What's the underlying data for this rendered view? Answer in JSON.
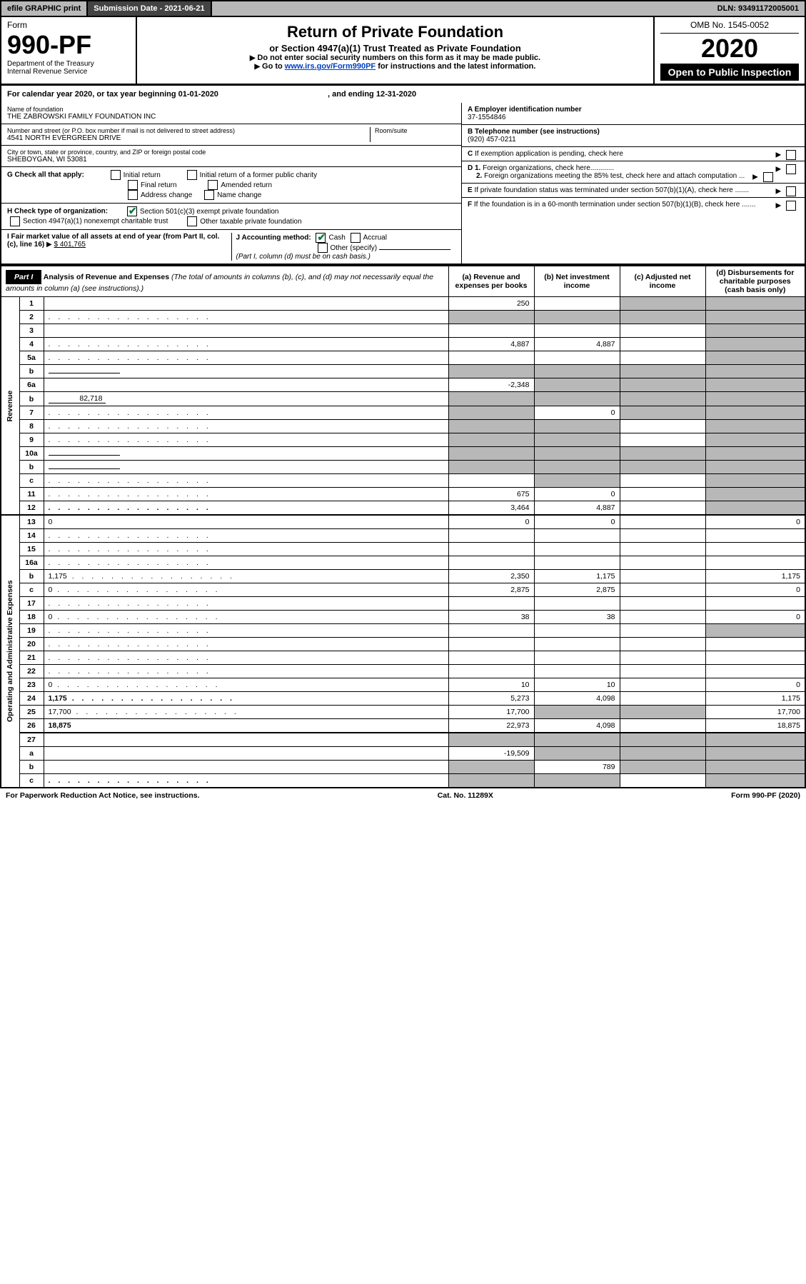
{
  "topbar": {
    "efile": "efile GRAPHIC print",
    "submission_label": "Submission Date - 2021-06-21",
    "dln": "DLN: 93491172005001"
  },
  "header": {
    "form_word": "Form",
    "form_number": "990-PF",
    "dept": "Department of the Treasury",
    "irs": "Internal Revenue Service",
    "title": "Return of Private Foundation",
    "subtitle": "or Section 4947(a)(1) Trust Treated as Private Foundation",
    "instr1": "Do not enter social security numbers on this form as it may be made public.",
    "instr2_pre": "Go to ",
    "instr2_link": "www.irs.gov/Form990PF",
    "instr2_post": " for instructions and the latest information.",
    "omb": "OMB No. 1545-0052",
    "year": "2020",
    "open": "Open to Public Inspection"
  },
  "calyear": {
    "prefix": "For calendar year 2020, or tax year beginning ",
    "begin": "01-01-2020",
    "mid": " , and ending ",
    "end": "12-31-2020"
  },
  "name": {
    "label": "Name of foundation",
    "value": "THE ZABROWSKI FAMILY FOUNDATION INC"
  },
  "address": {
    "label": "Number and street (or P.O. box number if mail is not delivered to street address)",
    "value": "4541 NORTH EVERGREEN DRIVE",
    "room_label": "Room/suite"
  },
  "city": {
    "label": "City or town, state or province, country, and ZIP or foreign postal code",
    "value": "SHEBOYGAN, WI  53081"
  },
  "ein": {
    "hdr": "A Employer identification number",
    "value": "37-1554846"
  },
  "phone": {
    "hdr": "B Telephone number (see instructions)",
    "value": "(920) 457-0211"
  },
  "right_side": {
    "C": "If exemption application is pending, check here",
    "D1": "Foreign organizations, check here............",
    "D2": "Foreign organizations meeting the 85% test, check here and attach computation ...",
    "E": "If private foundation status was terminated under section 507(b)(1)(A), check here .......",
    "F": "If the foundation is in a 60-month termination under section 507(b)(1)(B), check here ......."
  },
  "G": {
    "hdr": "G Check all that apply:",
    "opts": [
      "Initial return",
      "Initial return of a former public charity",
      "Final return",
      "Amended return",
      "Address change",
      "Name change"
    ]
  },
  "H": {
    "hdr": "H Check type of organization:",
    "opt1": "Section 501(c)(3) exempt private foundation",
    "opt2": "Section 4947(a)(1) nonexempt charitable trust",
    "opt3": "Other taxable private foundation"
  },
  "I": {
    "hdr": "I Fair market value of all assets at end of year (from Part II, col. (c), line 16)",
    "val": "$  401,765"
  },
  "J": {
    "hdr": "J Accounting method:",
    "cash": "Cash",
    "accrual": "Accrual",
    "other": "Other (specify)",
    "note": "(Part I, column (d) must be on cash basis.)"
  },
  "part1": {
    "label": "Part I",
    "title": "Analysis of Revenue and Expenses",
    "title_note": "(The total of amounts in columns (b), (c), and (d) may not necessarily equal the amounts in column (a) (see instructions).)",
    "cols": {
      "a": "(a)  Revenue and expenses per books",
      "b": "(b)  Net investment income",
      "c": "(c)  Adjusted net income",
      "d": "(d)  Disbursements for charitable purposes (cash basis only)"
    },
    "side_revenue": "Revenue",
    "side_expenses": "Operating and Administrative Expenses"
  },
  "rows": [
    {
      "n": "1",
      "d": "",
      "a": "250",
      "b": "",
      "c": "",
      "shade_c": true,
      "shade_d": true
    },
    {
      "n": "2",
      "d": "",
      "a": "",
      "b": "",
      "c": "",
      "shade_all": true,
      "dotlead": true
    },
    {
      "n": "3",
      "d": "",
      "a": "",
      "b": "",
      "c": "",
      "shade_d": true
    },
    {
      "n": "4",
      "d": "",
      "a": "4,887",
      "b": "4,887",
      "c": "",
      "shade_d": true,
      "dotlead": true
    },
    {
      "n": "5a",
      "d": "",
      "a": "",
      "b": "",
      "c": "",
      "shade_d": true,
      "dotlead": true
    },
    {
      "n": "b",
      "d": "",
      "a": "",
      "b": "",
      "c": "",
      "shade_all": true,
      "inline": true
    },
    {
      "n": "6a",
      "d": "",
      "a": "-2,348",
      "b": "",
      "c": "",
      "shade_bcd": true
    },
    {
      "n": "b",
      "d": "",
      "a": "",
      "b": "",
      "c": "",
      "shade_all": true,
      "inline_val": "82,718"
    },
    {
      "n": "7",
      "d": "",
      "a": "",
      "b": "0",
      "c": "",
      "shade_a": true,
      "shade_cd": true,
      "dotlead": true
    },
    {
      "n": "8",
      "d": "",
      "a": "",
      "b": "",
      "c": "",
      "shade_ab": true,
      "shade_d": true,
      "dotlead": true
    },
    {
      "n": "9",
      "d": "",
      "a": "",
      "b": "",
      "c": "",
      "shade_ab": true,
      "shade_d": true,
      "dotlead": true
    },
    {
      "n": "10a",
      "d": "",
      "a": "",
      "b": "",
      "c": "",
      "shade_all": true,
      "inline": true
    },
    {
      "n": "b",
      "d": "",
      "a": "",
      "b": "",
      "c": "",
      "shade_all": true,
      "inline": true,
      "dotlead": true
    },
    {
      "n": "c",
      "d": "",
      "a": "",
      "b": "",
      "c": "",
      "shade_b": true,
      "shade_d": true,
      "dotlead": true
    },
    {
      "n": "11",
      "d": "",
      "a": "675",
      "b": "0",
      "c": "",
      "shade_d": true,
      "dotlead": true
    },
    {
      "n": "12",
      "d": "",
      "a": "3,464",
      "b": "4,887",
      "c": "",
      "shade_d": true,
      "bold": true,
      "dotlead": true
    },
    {
      "n": "13",
      "d": "0",
      "a": "0",
      "b": "0",
      "c": ""
    },
    {
      "n": "14",
      "d": "",
      "a": "",
      "b": "",
      "c": "",
      "dotlead": true
    },
    {
      "n": "15",
      "d": "",
      "a": "",
      "b": "",
      "c": "",
      "dotlead": true
    },
    {
      "n": "16a",
      "d": "",
      "a": "",
      "b": "",
      "c": "",
      "dotlead": true
    },
    {
      "n": "b",
      "d": "1,175",
      "a": "2,350",
      "b": "1,175",
      "c": "",
      "dotlead": true
    },
    {
      "n": "c",
      "d": "0",
      "a": "2,875",
      "b": "2,875",
      "c": "",
      "dotlead": true
    },
    {
      "n": "17",
      "d": "",
      "a": "",
      "b": "",
      "c": "",
      "dotlead": true
    },
    {
      "n": "18",
      "d": "0",
      "a": "38",
      "b": "38",
      "c": "",
      "dotlead": true
    },
    {
      "n": "19",
      "d": "",
      "a": "",
      "b": "",
      "c": "",
      "shade_d": true,
      "dotlead": true
    },
    {
      "n": "20",
      "d": "",
      "a": "",
      "b": "",
      "c": "",
      "dotlead": true
    },
    {
      "n": "21",
      "d": "",
      "a": "",
      "b": "",
      "c": "",
      "dotlead": true
    },
    {
      "n": "22",
      "d": "",
      "a": "",
      "b": "",
      "c": "",
      "dotlead": true
    },
    {
      "n": "23",
      "d": "0",
      "a": "10",
      "b": "10",
      "c": "",
      "dotlead": true
    },
    {
      "n": "24",
      "d": "1,175",
      "a": "5,273",
      "b": "4,098",
      "c": "",
      "bold": true,
      "dotlead": true
    },
    {
      "n": "25",
      "d": "17,700",
      "a": "17,700",
      "b": "",
      "c": "",
      "shade_bc": true,
      "dotlead": true
    },
    {
      "n": "26",
      "d": "18,875",
      "a": "22,973",
      "b": "4,098",
      "c": "",
      "bold": true
    },
    {
      "n": "27",
      "d": "",
      "a": "",
      "b": "",
      "c": "",
      "shade_all": true
    },
    {
      "n": "a",
      "d": "",
      "a": "-19,509",
      "b": "",
      "c": "",
      "shade_bcd": true,
      "bold": true
    },
    {
      "n": "b",
      "d": "",
      "a": "",
      "b": "789",
      "c": "",
      "shade_a": true,
      "shade_cd": true,
      "bold": true
    },
    {
      "n": "c",
      "d": "",
      "a": "",
      "b": "",
      "c": "",
      "shade_ab": true,
      "shade_d": true,
      "bold": true,
      "dotlead": true
    }
  ],
  "footer": {
    "left": "For Paperwork Reduction Act Notice, see instructions.",
    "mid": "Cat. No. 11289X",
    "right": "Form 990-PF (2020)"
  },
  "colors": {
    "shade": "#b8b8b8",
    "link": "#0040c0",
    "check": "#0a7d3a"
  }
}
